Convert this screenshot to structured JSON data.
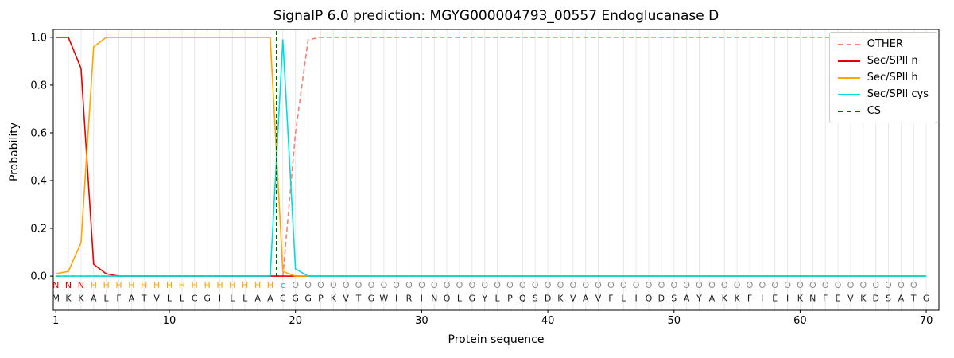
{
  "chart_data": {
    "type": "line",
    "title": "SignalP 6.0 prediction: MGYG000004793_00557 Endoglucanase D",
    "xlabel": "Protein sequence",
    "ylabel": "Probability",
    "xlim": [
      0.8,
      71
    ],
    "ylim": [
      -0.143,
      1.033
    ],
    "x_ticks": [
      1,
      10,
      20,
      30,
      40,
      50,
      60,
      70
    ],
    "y_ticks": [
      "0.0",
      "0.2",
      "0.4",
      "0.6",
      "0.8",
      "1.0"
    ],
    "grid": true,
    "grid_color": "#e8e8e8",
    "legend": {
      "position": "upper-right",
      "entries": [
        {
          "label": "OTHER",
          "color": "#fa8072",
          "style": "dashed"
        },
        {
          "label": "Sec/SPII n",
          "color": "#e60000",
          "style": "solid"
        },
        {
          "label": "Sec/SPII h",
          "color": "#ffa500",
          "style": "solid"
        },
        {
          "label": "Sec/SPII cys",
          "color": "#00dddd",
          "style": "solid"
        },
        {
          "label": "CS",
          "color": "#006400",
          "style": "dashed"
        }
      ]
    },
    "cs_line": {
      "x": 18.5,
      "color": "#006400",
      "style": "dashed"
    },
    "x_start": 1,
    "series": [
      {
        "name": "OTHER",
        "color": "#fa8072",
        "style": "dashed",
        "values": [
          0,
          0,
          0,
          0,
          0,
          0,
          0,
          0,
          0,
          0,
          0,
          0,
          0,
          0,
          0,
          0,
          0,
          0,
          0,
          0.6,
          0.99,
          1,
          1,
          1,
          1,
          1,
          1,
          1,
          1,
          1,
          1,
          1,
          1,
          1,
          1,
          1,
          1,
          1,
          1,
          1,
          1,
          1,
          1,
          1,
          1,
          1,
          1,
          1,
          1,
          1,
          1,
          1,
          1,
          1,
          1,
          1,
          1,
          1,
          1,
          1,
          1,
          1,
          1,
          1,
          1,
          1,
          1,
          1,
          1,
          1
        ]
      },
      {
        "name": "Sec/SPII n",
        "color": "#e60000",
        "style": "solid",
        "values": [
          1,
          1,
          0.87,
          0.05,
          0.01,
          0,
          0,
          0,
          0,
          0,
          0,
          0,
          0,
          0,
          0,
          0,
          0,
          0,
          0,
          0,
          0,
          0,
          0,
          0,
          0,
          0,
          0,
          0,
          0,
          0,
          0,
          0,
          0,
          0,
          0,
          0,
          0,
          0,
          0,
          0,
          0,
          0,
          0,
          0,
          0,
          0,
          0,
          0,
          0,
          0,
          0,
          0,
          0,
          0,
          0,
          0,
          0,
          0,
          0,
          0,
          0,
          0,
          0,
          0,
          0,
          0,
          0,
          0,
          0,
          0
        ]
      },
      {
        "name": "Sec/SPII h",
        "color": "#ffa500",
        "style": "solid",
        "values": [
          0.01,
          0.02,
          0.14,
          0.96,
          1,
          1,
          1,
          1,
          1,
          1,
          1,
          1,
          1,
          1,
          1,
          1,
          1,
          1,
          0.02,
          0,
          0,
          0,
          0,
          0,
          0,
          0,
          0,
          0,
          0,
          0,
          0,
          0,
          0,
          0,
          0,
          0,
          0,
          0,
          0,
          0,
          0,
          0,
          0,
          0,
          0,
          0,
          0,
          0,
          0,
          0,
          0,
          0,
          0,
          0,
          0,
          0,
          0,
          0,
          0,
          0,
          0,
          0,
          0,
          0,
          0,
          0,
          0,
          0,
          0,
          0
        ]
      },
      {
        "name": "Sec/SPII cys",
        "color": "#00dddd",
        "style": "solid",
        "values": [
          0,
          0,
          0,
          0,
          0,
          0,
          0,
          0,
          0,
          0,
          0,
          0,
          0,
          0,
          0,
          0,
          0,
          0,
          0.99,
          0.03,
          0,
          0,
          0,
          0,
          0,
          0,
          0,
          0,
          0,
          0,
          0,
          0,
          0,
          0,
          0,
          0,
          0,
          0,
          0,
          0,
          0,
          0,
          0,
          0,
          0,
          0,
          0,
          0,
          0,
          0,
          0,
          0,
          0,
          0,
          0,
          0,
          0,
          0,
          0,
          0,
          0,
          0,
          0,
          0,
          0,
          0,
          0,
          0,
          0,
          0
        ]
      }
    ]
  },
  "sequence": {
    "residues": "MKKALFATVLLCGILLAACGGPKVTGWIRINQLGYLPQSDKVAVFLIQDSAYAKKFIEIKNFEVKDSATG",
    "region_labels": "NNNHHHHHHHHHHHHHHHcOOOOOOOOOOOOOOOOOOOOOOOOOOOOOOOOOOOOOOOOOOOOOOOOOO",
    "label_colors": {
      "N": "#e60000",
      "H": "#ffa500",
      "c": "#00c5cc",
      "O": "#8c8c8c"
    },
    "residue_color": "#1a1a1a"
  }
}
